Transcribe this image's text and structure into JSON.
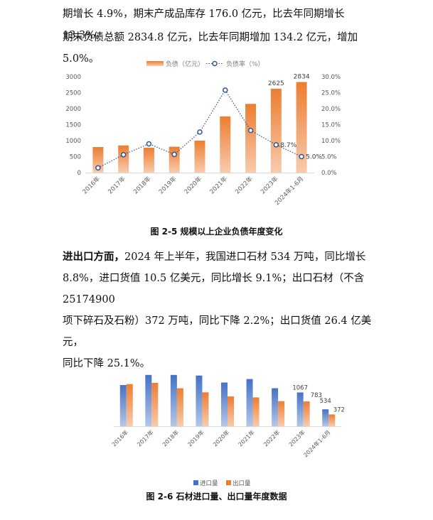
{
  "text": {
    "line1": "期增长 4.9%，期末产成品库存 176.0 亿元，比去年同期增长 13.3%。",
    "line2": "期末负债总额 2834.8 亿元，比去年同期增加 134.2 亿元，增加 5.0%。",
    "para2_lead": "进出口方面，",
    "para2_l1": "2024 年上半年，我国进口石材 534 万吨，同比增长",
    "para2_l2": "8.8%，进口货值 10.5 亿美元，同比增长 9.1%；出口石材（不含 25174900",
    "para2_l3": "项下碎石及石粉）372 万吨，同比下降 2.2%；出口货值 26.4 亿美元，",
    "para2_l4": "同比下降 25.1%。"
  },
  "captions": {
    "fig1": "图 2-5  规模以上企业负债年度变化",
    "fig2": "图 2-6    石材进口量、出口量年度数据"
  },
  "colors": {
    "orange": "#ED7D31",
    "orange_light": "#F8CBAD",
    "blue": "#4472C4",
    "blue_light": "#B4C7E7",
    "line": "#2E5597"
  },
  "chart_data": [
    {
      "type": "bar",
      "categories": [
        "2016年",
        "2017年",
        "2018年",
        "2019年",
        "2020年",
        "2021年",
        "2022年",
        "2023年",
        "2024年1-6月"
      ],
      "series": [
        {
          "name": "负债（亿元）",
          "type": "bar",
          "axis": "left",
          "values": [
            800,
            850,
            780,
            810,
            1000,
            1760,
            2150,
            2625,
            2834
          ]
        },
        {
          "name": "负债率（%）",
          "type": "line",
          "axis": "right",
          "values": [
            1.5,
            5.6,
            9.0,
            5.7,
            12.7,
            25.8,
            13.2,
            8.7,
            5.0
          ]
        }
      ],
      "data_labels": [
        {
          "series": 0,
          "index": 7,
          "text": "2625"
        },
        {
          "series": 0,
          "index": 8,
          "text": "2834"
        },
        {
          "series": 1,
          "index": 7,
          "text": "8.7%"
        },
        {
          "series": 1,
          "index": 8,
          "text": "5.0%"
        }
      ],
      "ylim": [
        0,
        3000
      ],
      "yticks": [
        "0",
        "500",
        "1000",
        "1500",
        "2000",
        "2500",
        "3000"
      ],
      "y2lim": [
        0,
        30
      ],
      "y2ticks": [
        "0.0%",
        "5.0%",
        "10.0%",
        "15.0%",
        "20.0%",
        "25.0%",
        "30.0%"
      ],
      "legend": "top",
      "grid": false
    },
    {
      "type": "bar",
      "categories": [
        "2016年",
        "2017年",
        "2018年",
        "2019年",
        "2020年",
        "2021年",
        "2022年",
        "2023年",
        "2024年1-6月"
      ],
      "series": [
        {
          "name": "进口量",
          "values": [
            1300,
            1620,
            1620,
            1600,
            1380,
            1490,
            1200,
            1067,
            534
          ]
        },
        {
          "name": "出口量",
          "values": [
            1330,
            1370,
            1200,
            1070,
            940,
            910,
            790,
            783,
            372
          ]
        }
      ],
      "data_labels": [
        {
          "series": 0,
          "index": 7,
          "text": "1067"
        },
        {
          "series": 1,
          "index": 7,
          "text": "783"
        },
        {
          "series": 0,
          "index": 8,
          "text": "534"
        },
        {
          "series": 1,
          "index": 8,
          "text": "372"
        }
      ],
      "ylim": [
        0,
        1750
      ],
      "legend": "bottom",
      "grid": false
    }
  ]
}
